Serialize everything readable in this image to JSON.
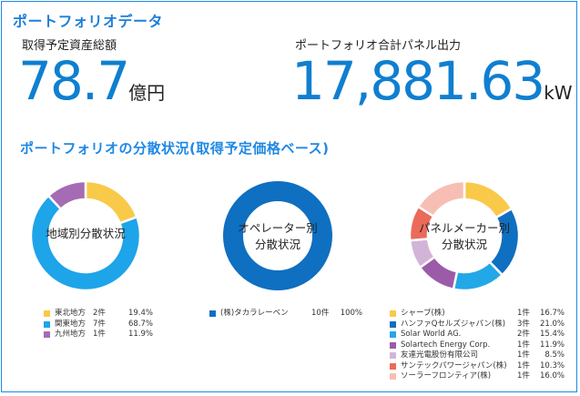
{
  "title": "ポートフォリオデータ",
  "kpi_asset": {
    "label": "取得予定資産総額",
    "value": "78.7",
    "unit": "億円"
  },
  "kpi_power": {
    "label": "ポートフォリオ合計パネル出力",
    "value": "17,881.63",
    "unit": "kW"
  },
  "section_title": "ポートフォリオの分散状況(取得予定価格ベース)",
  "chart_data": [
    {
      "type": "pie",
      "center_label": [
        "地域別分散状況"
      ],
      "slices": [
        {
          "name": "東北地方",
          "count": "2件",
          "pct_label": "19.4%",
          "value": 19.4,
          "color": "#f9c94a"
        },
        {
          "name": "関東地方",
          "count": "7件",
          "pct_label": "68.7%",
          "value": 68.7,
          "color": "#1ea4e8"
        },
        {
          "name": "九州地方",
          "count": "1件",
          "pct_label": "11.9%",
          "value": 11.9,
          "color": "#a56bb4"
        }
      ]
    },
    {
      "type": "pie",
      "center_label": [
        "オペレーター別",
        "分散状況"
      ],
      "slices": [
        {
          "name": "(株)タカラレーベン",
          "count": "10件",
          "pct_label": "100%",
          "value": 100,
          "color": "#0f6fc0"
        }
      ]
    },
    {
      "type": "pie",
      "center_label": [
        "パネルメーカー別",
        "分散状況"
      ],
      "slices": [
        {
          "name": "シャープ(株)",
          "count": "1件",
          "pct_label": "16.7%",
          "value": 16.7,
          "color": "#f9c94a"
        },
        {
          "name": "ハンファQセルズジャパン(株)",
          "count": "3件",
          "pct_label": "21.0%",
          "value": 21.0,
          "color": "#0f6fc0"
        },
        {
          "name": "Solar World AG.",
          "count": "2件",
          "pct_label": "15.4%",
          "value": 15.4,
          "color": "#22a8e6"
        },
        {
          "name": "Solartech Energy Corp.",
          "count": "1件",
          "pct_label": "11.9%",
          "value": 11.9,
          "color": "#9b5ba8"
        },
        {
          "name": "友達光電股份有限公司",
          "count": "1件",
          "pct_label": "8.5%",
          "value": 8.5,
          "color": "#d3b4d9"
        },
        {
          "name": "サンテックパワージャパン(株)",
          "count": "1件",
          "pct_label": "10.3%",
          "value": 10.3,
          "color": "#ec6a5a"
        },
        {
          "name": "ソーラーフロンティア(株)",
          "count": "1件",
          "pct_label": "16.0%",
          "value": 16.0,
          "color": "#f7bfb3"
        }
      ]
    }
  ]
}
